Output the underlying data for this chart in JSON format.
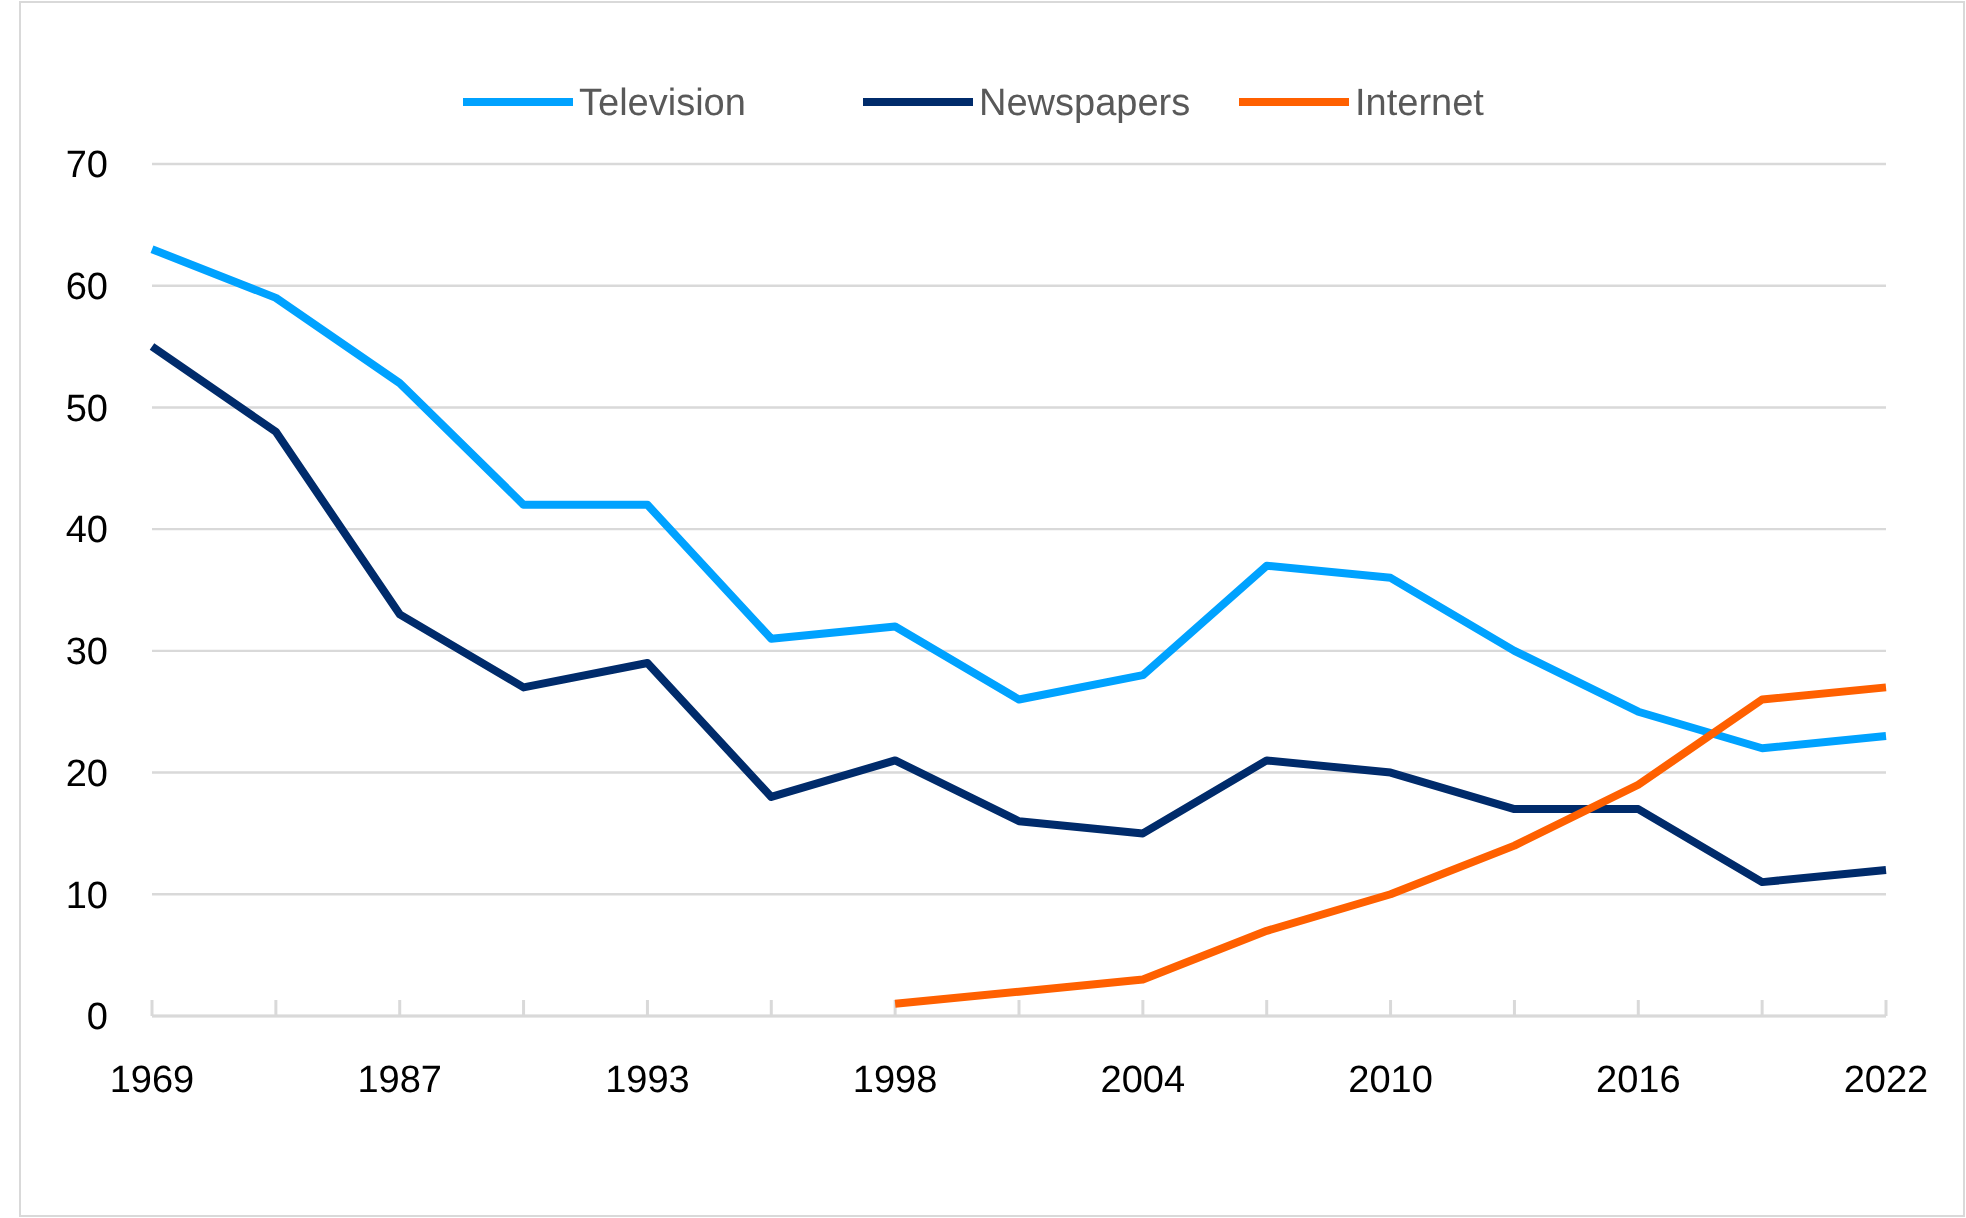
{
  "chart_data": {
    "type": "line",
    "categories": [
      "1969",
      null,
      "1987",
      null,
      "1993",
      null,
      "1998",
      null,
      "2004",
      null,
      "2010",
      null,
      "2016",
      null,
      "2022"
    ],
    "series": [
      {
        "name": "Television",
        "color": "#00a2ff",
        "values": [
          63,
          59,
          52,
          42,
          42,
          31,
          32,
          26,
          28,
          37,
          36,
          30,
          25,
          22,
          23
        ]
      },
      {
        "name": "Newspapers",
        "color": "#002b6b",
        "values": [
          55,
          48,
          33,
          27,
          29,
          18,
          21,
          16,
          15,
          21,
          20,
          17,
          17,
          11,
          12
        ]
      },
      {
        "name": "Internet",
        "color": "#ff6000",
        "values": [
          null,
          null,
          null,
          null,
          null,
          null,
          1,
          2,
          3,
          7,
          10,
          14,
          19,
          26,
          27
        ]
      }
    ],
    "ylim": [
      0,
      70
    ],
    "yticks": [
      0,
      10,
      20,
      30,
      40,
      50,
      60,
      70
    ],
    "grid": "y",
    "legend": "top",
    "marker": "none",
    "line_style": "solid"
  }
}
